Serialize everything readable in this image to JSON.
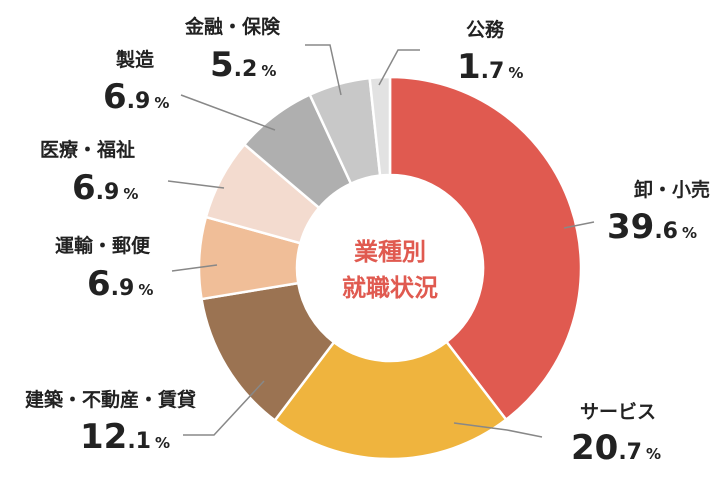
{
  "chart_data": {
    "type": "pie",
    "title": "業種別\n就職状況",
    "unit": "%",
    "categories": [
      "卸・小売",
      "サービス",
      "建築・不動産・賃貸",
      "運輸・郵便",
      "医療・福祉",
      "製造",
      "金融・保険",
      "公務"
    ],
    "values": [
      39.6,
      20.7,
      12.1,
      6.9,
      6.9,
      6.9,
      5.2,
      1.7
    ],
    "value_labels": [
      {
        "int": "39",
        "dec": ".6"
      },
      {
        "int": "20",
        "dec": ".7"
      },
      {
        "int": "12",
        "dec": ".1"
      },
      {
        "int": "6",
        "dec": ".9"
      },
      {
        "int": "6",
        "dec": ".9"
      },
      {
        "int": "6",
        "dec": ".9"
      },
      {
        "int": "5",
        "dec": ".2"
      },
      {
        "int": "1",
        "dec": ".7"
      }
    ],
    "colors": [
      "#E05A50",
      "#EFB43E",
      "#9B7352",
      "#F0BE98",
      "#F3DBCF",
      "#AFAFAF",
      "#C8C8C8",
      "#E2E2E2"
    ],
    "donut": true,
    "start_angle": "12 o'clock",
    "direction": "clockwise",
    "center_title_color": "#E05A50",
    "leader_line_color": "#888888"
  }
}
